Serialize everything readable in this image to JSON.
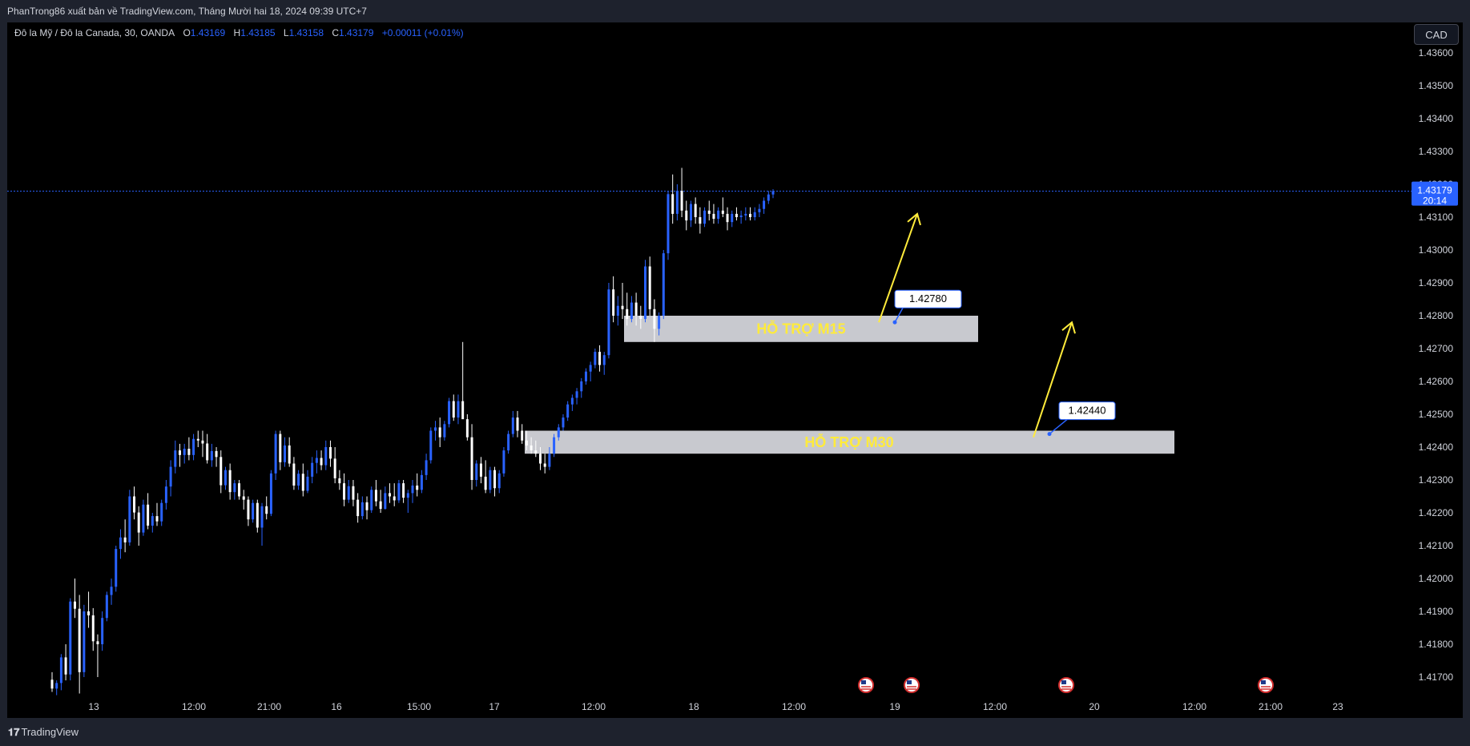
{
  "header": {
    "publish_text": "PhanTrong86 xuất bản về TradingView.com, Tháng Mười hai 18, 2024 09:39 UTC+7"
  },
  "legend": {
    "symbol": "Đô la Mỹ / Đô la Canada, 30, OANDA",
    "o_label": "O",
    "o_value": "1.43169",
    "h_label": "H",
    "h_value": "1.43185",
    "l_label": "L",
    "l_value": "1.43158",
    "c_label": "C",
    "c_value": "1.43179",
    "change": "+0.00011 (+0.01%)"
  },
  "currency_button": "CAD",
  "footer": {
    "brand": "TradingView",
    "logo_icon": "tradingview-logo-icon"
  },
  "colors": {
    "background": "#000000",
    "up_candle": "#2962ff",
    "down_candle": "#ffffff",
    "zone_fill": "#c8c9cf",
    "zone_text": "#ffeb3b",
    "arrow": "#ffeb3b",
    "price_line": "#2962ff"
  },
  "chart_data": {
    "type": "candlestick",
    "symbol": "USDCAD",
    "interval": "30",
    "y_axis": {
      "ticks": [
        "1.43600",
        "1.43500",
        "1.43400",
        "1.43300",
        "1.43200",
        "1.43100",
        "1.43000",
        "1.42900",
        "1.42800",
        "1.42700",
        "1.42600",
        "1.42500",
        "1.42400",
        "1.42300",
        "1.42200",
        "1.42100",
        "1.42000",
        "1.41900",
        "1.41800",
        "1.41700"
      ],
      "range": [
        1.4164,
        1.4364
      ]
    },
    "x_axis": {
      "ticks": [
        "13",
        "12:00",
        "21:00",
        "16",
        "15:00",
        "17",
        "12:00",
        "18",
        "12:00",
        "19",
        "12:00",
        "20",
        "12:00",
        "21:00",
        "23"
      ]
    },
    "current_price": {
      "value": "1.43179",
      "countdown": "20:14"
    },
    "zones": [
      {
        "label": "HỖ TRỢ M15",
        "low": 1.4272,
        "high": 1.428
      },
      {
        "label": "HỖ TRỢ M30",
        "low": 1.4238,
        "high": 1.4245
      }
    ],
    "price_labels": [
      {
        "text": "1.42780",
        "price": 1.4278
      },
      {
        "text": "1.42440",
        "price": 1.4244
      }
    ],
    "arrows": [
      {
        "from": 1.4278,
        "to": 1.4311,
        "direction": "up"
      },
      {
        "from": 1.4243,
        "to": 1.4278,
        "direction": "up"
      }
    ],
    "event_markers": [
      "us-flag-icon",
      "us-flag-icon",
      "us-flag-icon",
      "us-flag-icon"
    ],
    "candles": [
      [
        1.41692,
        1.41715,
        1.41655,
        1.41665
      ],
      [
        1.41665,
        1.4169,
        1.41645,
        1.41682
      ],
      [
        1.41682,
        1.4177,
        1.4166,
        1.4176
      ],
      [
        1.4176,
        1.418,
        1.4169,
        1.41708
      ],
      [
        1.41708,
        1.4194,
        1.4169,
        1.4193
      ],
      [
        1.4193,
        1.42,
        1.4188,
        1.41908
      ],
      [
        1.41908,
        1.4195,
        1.4165,
        1.41715
      ],
      [
        1.41715,
        1.4192,
        1.417,
        1.419
      ],
      [
        1.419,
        1.4196,
        1.4185,
        1.41888
      ],
      [
        1.41888,
        1.4191,
        1.4178,
        1.41809
      ],
      [
        1.41809,
        1.4183,
        1.417,
        1.418
      ],
      [
        1.418,
        1.419,
        1.4178,
        1.4188
      ],
      [
        1.4188,
        1.4196,
        1.4187,
        1.4195
      ],
      [
        1.4195,
        1.42,
        1.4192,
        1.41975
      ],
      [
        1.41975,
        1.421,
        1.4196,
        1.4209
      ],
      [
        1.4209,
        1.4215,
        1.4206,
        1.42125
      ],
      [
        1.42125,
        1.4218,
        1.4208,
        1.4211
      ],
      [
        1.4211,
        1.4227,
        1.421,
        1.4225
      ],
      [
        1.4225,
        1.4228,
        1.4218,
        1.42201
      ],
      [
        1.42201,
        1.4222,
        1.421,
        1.4214
      ],
      [
        1.4214,
        1.4224,
        1.4213,
        1.42225
      ],
      [
        1.42225,
        1.4226,
        1.4215,
        1.42161
      ],
      [
        1.42161,
        1.422,
        1.4214,
        1.4219
      ],
      [
        1.4219,
        1.4223,
        1.4216,
        1.42174
      ],
      [
        1.42174,
        1.4224,
        1.4216,
        1.4223
      ],
      [
        1.4223,
        1.423,
        1.4221,
        1.4228
      ],
      [
        1.4228,
        1.4236,
        1.4225,
        1.4234
      ],
      [
        1.4234,
        1.4242,
        1.4232,
        1.4239
      ],
      [
        1.4239,
        1.4241,
        1.4234,
        1.42376
      ],
      [
        1.42376,
        1.4241,
        1.4235,
        1.42395
      ],
      [
        1.42395,
        1.4243,
        1.4236,
        1.42376
      ],
      [
        1.42376,
        1.4244,
        1.4236,
        1.42425
      ],
      [
        1.42425,
        1.4245,
        1.424,
        1.4242
      ],
      [
        1.4242,
        1.4245,
        1.4237,
        1.42411
      ],
      [
        1.42411,
        1.4244,
        1.4235,
        1.4236
      ],
      [
        1.4236,
        1.4241,
        1.4234,
        1.42388
      ],
      [
        1.42388,
        1.424,
        1.4234,
        1.4237
      ],
      [
        1.4237,
        1.4239,
        1.4226,
        1.42284
      ],
      [
        1.42284,
        1.4234,
        1.4227,
        1.4233
      ],
      [
        1.4233,
        1.4235,
        1.4224,
        1.42263
      ],
      [
        1.42263,
        1.423,
        1.4224,
        1.4229
      ],
      [
        1.4229,
        1.423,
        1.4224,
        1.4225
      ],
      [
        1.4225,
        1.4227,
        1.4221,
        1.4224
      ],
      [
        1.4224,
        1.4225,
        1.4216,
        1.4218
      ],
      [
        1.4218,
        1.4224,
        1.4217,
        1.4223
      ],
      [
        1.4223,
        1.4224,
        1.4214,
        1.42155
      ],
      [
        1.42155,
        1.4223,
        1.421,
        1.4222
      ],
      [
        1.4222,
        1.4225,
        1.4218,
        1.42197
      ],
      [
        1.42197,
        1.4233,
        1.4219,
        1.4232
      ],
      [
        1.4232,
        1.4245,
        1.423,
        1.4244
      ],
      [
        1.4244,
        1.4245,
        1.4233,
        1.42354
      ],
      [
        1.42354,
        1.4243,
        1.4234,
        1.42405
      ],
      [
        1.42405,
        1.4243,
        1.4234,
        1.4235
      ],
      [
        1.4235,
        1.4237,
        1.4227,
        1.42283
      ],
      [
        1.42283,
        1.4233,
        1.4227,
        1.42319
      ],
      [
        1.42319,
        1.4235,
        1.4225,
        1.42267
      ],
      [
        1.42267,
        1.4233,
        1.4226,
        1.4231
      ],
      [
        1.4231,
        1.4237,
        1.4229,
        1.42352
      ],
      [
        1.42352,
        1.4239,
        1.4232,
        1.42367
      ],
      [
        1.42367,
        1.4239,
        1.4233,
        1.42345
      ],
      [
        1.42345,
        1.4242,
        1.4233,
        1.424
      ],
      [
        1.424,
        1.4242,
        1.4234,
        1.42365
      ],
      [
        1.42365,
        1.424,
        1.4229,
        1.42305
      ],
      [
        1.42305,
        1.4233,
        1.4227,
        1.4229
      ],
      [
        1.4229,
        1.4232,
        1.4222,
        1.4224
      ],
      [
        1.4224,
        1.423,
        1.4223,
        1.42281
      ],
      [
        1.42281,
        1.423,
        1.4222,
        1.4224
      ],
      [
        1.4224,
        1.4226,
        1.4217,
        1.4219
      ],
      [
        1.4219,
        1.4225,
        1.4218,
        1.42232
      ],
      [
        1.42232,
        1.4225,
        1.4218,
        1.42208
      ],
      [
        1.42208,
        1.4228,
        1.422,
        1.4227
      ],
      [
        1.4227,
        1.423,
        1.4222,
        1.42235
      ],
      [
        1.42235,
        1.4227,
        1.422,
        1.42212
      ],
      [
        1.42212,
        1.4228,
        1.4221,
        1.4226
      ],
      [
        1.4226,
        1.4229,
        1.4223,
        1.4225
      ],
      [
        1.4225,
        1.4229,
        1.4222,
        1.42238
      ],
      [
        1.42238,
        1.423,
        1.4223,
        1.4229
      ],
      [
        1.4229,
        1.423,
        1.4223,
        1.42246
      ],
      [
        1.42246,
        1.4227,
        1.422,
        1.4226
      ],
      [
        1.4226,
        1.423,
        1.4223,
        1.42283
      ],
      [
        1.42283,
        1.4232,
        1.4225,
        1.4227
      ],
      [
        1.4227,
        1.4233,
        1.4226,
        1.42315
      ],
      [
        1.42315,
        1.4238,
        1.423,
        1.4236
      ],
      [
        1.4236,
        1.4246,
        1.4235,
        1.4245
      ],
      [
        1.4245,
        1.4248,
        1.4242,
        1.4246
      ],
      [
        1.4246,
        1.4249,
        1.424,
        1.4243
      ],
      [
        1.4243,
        1.4248,
        1.4242,
        1.4247
      ],
      [
        1.4247,
        1.4255,
        1.4246,
        1.4254
      ],
      [
        1.4254,
        1.4256,
        1.4248,
        1.4249
      ],
      [
        1.4249,
        1.4256,
        1.4247,
        1.4254
      ],
      [
        1.4254,
        1.4272,
        1.425,
        1.42485
      ],
      [
        1.42485,
        1.425,
        1.4242,
        1.4243
      ],
      [
        1.4243,
        1.4247,
        1.4227,
        1.423
      ],
      [
        1.423,
        1.4236,
        1.4228,
        1.4235
      ],
      [
        1.4235,
        1.4237,
        1.4229,
        1.4231
      ],
      [
        1.4231,
        1.4236,
        1.4226,
        1.4227
      ],
      [
        1.4227,
        1.4234,
        1.4226,
        1.4233
      ],
      [
        1.4233,
        1.4234,
        1.4225,
        1.42275
      ],
      [
        1.42275,
        1.4233,
        1.4226,
        1.4232
      ],
      [
        1.4232,
        1.424,
        1.4231,
        1.4239
      ],
      [
        1.4239,
        1.4245,
        1.4238,
        1.4244
      ],
      [
        1.4244,
        1.4251,
        1.4243,
        1.4249
      ],
      [
        1.4249,
        1.4251,
        1.4243,
        1.4245
      ],
      [
        1.4245,
        1.4247,
        1.4241,
        1.4242
      ],
      [
        1.4242,
        1.4245,
        1.4239,
        1.42405
      ],
      [
        1.42405,
        1.4243,
        1.4238,
        1.4239
      ],
      [
        1.4239,
        1.4242,
        1.4237,
        1.4238
      ],
      [
        1.4238,
        1.424,
        1.4233,
        1.4235
      ],
      [
        1.4235,
        1.4238,
        1.4232,
        1.4234
      ],
      [
        1.4234,
        1.424,
        1.4233,
        1.4238
      ],
      [
        1.4238,
        1.4244,
        1.4237,
        1.4243
      ],
      [
        1.4243,
        1.4247,
        1.4242,
        1.4246
      ],
      [
        1.4246,
        1.425,
        1.4245,
        1.4249
      ],
      [
        1.4249,
        1.4254,
        1.4248,
        1.4253
      ],
      [
        1.4253,
        1.4256,
        1.4251,
        1.4255
      ],
      [
        1.4255,
        1.4258,
        1.4253,
        1.4257
      ],
      [
        1.4257,
        1.4261,
        1.4255,
        1.426
      ],
      [
        1.426,
        1.4264,
        1.4259,
        1.4263
      ],
      [
        1.4263,
        1.4266,
        1.426,
        1.4265
      ],
      [
        1.4265,
        1.427,
        1.4264,
        1.4269
      ],
      [
        1.4269,
        1.4271,
        1.4263,
        1.4265
      ],
      [
        1.4265,
        1.4269,
        1.4262,
        1.4268
      ],
      [
        1.4268,
        1.429,
        1.4267,
        1.4288
      ],
      [
        1.4288,
        1.4292,
        1.4278,
        1.428
      ],
      [
        1.428,
        1.4286,
        1.4277,
        1.4283
      ],
      [
        1.4283,
        1.429,
        1.4279,
        1.4282
      ],
      [
        1.4282,
        1.4287,
        1.4277,
        1.4279
      ],
      [
        1.4279,
        1.4286,
        1.4278,
        1.4284
      ],
      [
        1.4284,
        1.4287,
        1.4277,
        1.428
      ],
      [
        1.428,
        1.4283,
        1.4276,
        1.4279
      ],
      [
        1.4279,
        1.4297,
        1.4278,
        1.4295
      ],
      [
        1.4295,
        1.4298,
        1.428,
        1.4282
      ],
      [
        1.4282,
        1.4285,
        1.4272,
        1.4276
      ],
      [
        1.4276,
        1.4281,
        1.4274,
        1.428
      ],
      [
        1.428,
        1.43,
        1.4279,
        1.4299
      ],
      [
        1.4299,
        1.4318,
        1.4297,
        1.4317
      ],
      [
        1.4317,
        1.4323,
        1.4308,
        1.4311
      ],
      [
        1.4311,
        1.432,
        1.4309,
        1.4318
      ],
      [
        1.4318,
        1.4325,
        1.431,
        1.4312
      ],
      [
        1.4312,
        1.4315,
        1.4306,
        1.4309
      ],
      [
        1.4309,
        1.4315,
        1.4307,
        1.4314
      ],
      [
        1.4314,
        1.4316,
        1.4308,
        1.431
      ],
      [
        1.431,
        1.4313,
        1.4305,
        1.4308
      ],
      [
        1.4308,
        1.4313,
        1.4307,
        1.4312
      ],
      [
        1.4312,
        1.4315,
        1.4309,
        1.4311
      ],
      [
        1.4311,
        1.4314,
        1.4308,
        1.43095
      ],
      [
        1.43095,
        1.4313,
        1.4308,
        1.4312
      ],
      [
        1.4312,
        1.4316,
        1.431,
        1.4311
      ],
      [
        1.4311,
        1.4313,
        1.4306,
        1.43085
      ],
      [
        1.43085,
        1.4312,
        1.4307,
        1.4311
      ],
      [
        1.4311,
        1.4313,
        1.4309,
        1.431
      ],
      [
        1.431,
        1.4312,
        1.4308,
        1.43105
      ],
      [
        1.43105,
        1.4313,
        1.4309,
        1.4311
      ],
      [
        1.4311,
        1.4313,
        1.4309,
        1.431
      ],
      [
        1.431,
        1.4313,
        1.4309,
        1.43115
      ],
      [
        1.43115,
        1.4314,
        1.431,
        1.43125
      ],
      [
        1.43125,
        1.4316,
        1.4311,
        1.4315
      ],
      [
        1.4315,
        1.4318,
        1.4314,
        1.43169
      ],
      [
        1.43169,
        1.43185,
        1.43158,
        1.43179
      ]
    ]
  }
}
